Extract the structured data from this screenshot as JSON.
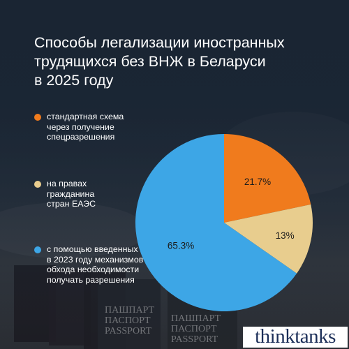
{
  "title_lines": [
    "Способы легализации иностранных",
    "трудящихся без ВНЖ в Беларуси",
    "в 2025 году"
  ],
  "legend": [
    {
      "lines": [
        "стандартная схема",
        "через получение",
        "спецразрешения"
      ],
      "color": "#f07b1d"
    },
    {
      "lines": [
        "на правах",
        "гражданина",
        "стран ЕАЭС"
      ],
      "color": "#e8cd8e"
    },
    {
      "lines": [
        "с помощью введенных",
        "в 2023 году механизмов",
        "обхода необходимости",
        "получать разрешения"
      ],
      "color": "#3da6e6"
    }
  ],
  "chart_data": {
    "type": "pie",
    "title": "Способы легализации иностранных трудящихся без ВНЖ в Беларуси в 2025 году",
    "categories": [
      "стандартная схема через получение спецразрешения",
      "на правах гражданина стран ЕАЭС",
      "с помощью введенных в 2023 году механизмов обхода необходимости получать разрешения"
    ],
    "values": [
      21.7,
      13,
      65.3
    ],
    "labels": [
      "21.7%",
      "13%",
      "65.3%"
    ],
    "colors": [
      "#f07b1d",
      "#e8cd8e",
      "#3da6e6"
    ],
    "start": "top, clockwise"
  },
  "background_text": [
    "ПАШПАРТ",
    "ПАСПОРТ",
    "PASSPORT"
  ],
  "logo": "thinktanks"
}
